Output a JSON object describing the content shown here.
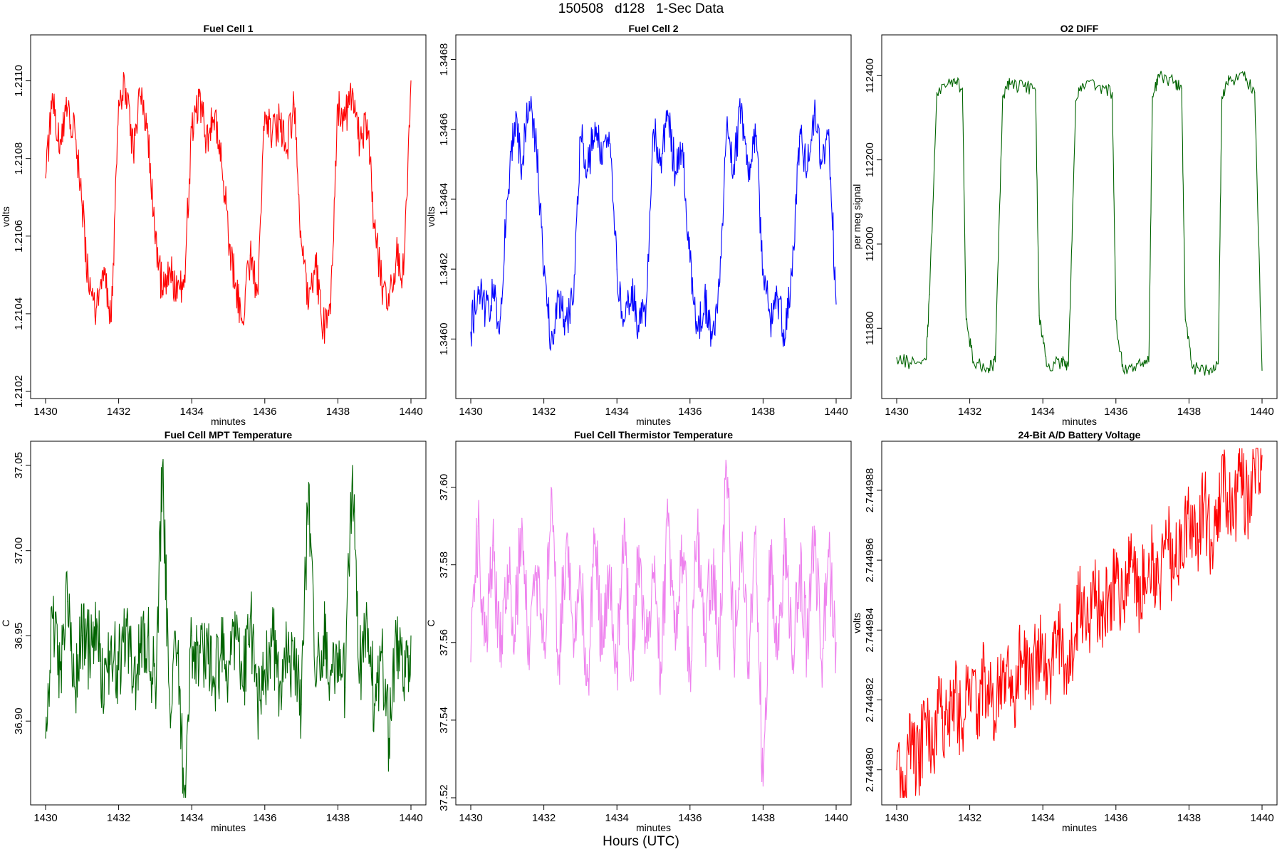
{
  "figure": {
    "title": "150508   d128   1-Sec Data",
    "xlabel": "Hours (UTC)"
  },
  "chart_data": [
    {
      "type": "line",
      "title": "Fuel Cell 1",
      "xlabel": "minutes",
      "ylabel": "volts",
      "color": "#ff0000",
      "xlim": [
        1430,
        1440
      ],
      "ylim": [
        1.2102,
        1.2111
      ],
      "xticks": [
        "1430",
        "1432",
        "1434",
        "1436",
        "1438",
        "1440"
      ],
      "yticks": [
        "1.2102",
        "1.2104",
        "1.2106",
        "1.2108",
        "1.2110"
      ],
      "x": [
        1430.0,
        1430.2,
        1430.4,
        1430.6,
        1430.8,
        1431.0,
        1431.2,
        1431.4,
        1431.6,
        1431.8,
        1432.0,
        1432.2,
        1432.4,
        1432.6,
        1432.8,
        1433.0,
        1433.2,
        1433.4,
        1433.6,
        1433.8,
        1434.0,
        1434.2,
        1434.4,
        1434.6,
        1434.8,
        1435.0,
        1435.2,
        1435.4,
        1435.6,
        1435.8,
        1436.0,
        1436.2,
        1436.4,
        1436.6,
        1436.8,
        1437.0,
        1437.2,
        1437.4,
        1437.6,
        1437.8,
        1438.0,
        1438.2,
        1438.4,
        1438.6,
        1438.8,
        1439.0,
        1439.2,
        1439.4,
        1439.6,
        1439.8,
        1440.0
      ],
      "y": [
        1.21075,
        1.21095,
        1.21085,
        1.21093,
        1.21088,
        1.21068,
        1.21045,
        1.21042,
        1.21052,
        1.21038,
        1.21095,
        1.21098,
        1.21082,
        1.21096,
        1.21087,
        1.21058,
        1.21046,
        1.21052,
        1.21044,
        1.2105,
        1.21088,
        1.21096,
        1.21085,
        1.2109,
        1.21084,
        1.2106,
        1.21048,
        1.21038,
        1.21055,
        1.21046,
        1.21092,
        1.21086,
        1.2109,
        1.21082,
        1.21094,
        1.21058,
        1.21042,
        1.21052,
        1.21036,
        1.2104,
        1.21094,
        1.2109,
        1.21098,
        1.21084,
        1.2109,
        1.21062,
        1.21048,
        1.21042,
        1.21055,
        1.2105,
        1.211
      ]
    },
    {
      "type": "line",
      "title": "Fuel Cell 2",
      "xlabel": "minutes",
      "ylabel": "volts",
      "color": "#0000ff",
      "xlim": [
        1430,
        1440
      ],
      "ylim": [
        1.34585,
        1.34685
      ],
      "xticks": [
        "1430",
        "1432",
        "1434",
        "1436",
        "1438",
        "1440"
      ],
      "yticks": [
        "1.3460",
        "1.3462",
        "1.3464",
        "1.3466",
        "1.3468"
      ],
      "x": [
        1430.0,
        1430.2,
        1430.4,
        1430.6,
        1430.8,
        1431.0,
        1431.2,
        1431.4,
        1431.6,
        1431.8,
        1432.0,
        1432.2,
        1432.4,
        1432.6,
        1432.8,
        1433.0,
        1433.2,
        1433.4,
        1433.6,
        1433.8,
        1434.0,
        1434.2,
        1434.4,
        1434.6,
        1434.8,
        1435.0,
        1435.2,
        1435.4,
        1435.6,
        1435.8,
        1436.0,
        1436.2,
        1436.4,
        1436.6,
        1436.8,
        1437.0,
        1437.2,
        1437.4,
        1437.6,
        1437.8,
        1438.0,
        1438.2,
        1438.4,
        1438.6,
        1438.8,
        1439.0,
        1439.2,
        1439.4,
        1439.6,
        1439.8,
        1440.0
      ],
      "y": [
        1.34602,
        1.34615,
        1.34608,
        1.34612,
        1.34605,
        1.3464,
        1.34662,
        1.3465,
        1.34668,
        1.34655,
        1.34618,
        1.346,
        1.34612,
        1.34605,
        1.3461,
        1.34658,
        1.34648,
        1.34662,
        1.3465,
        1.34656,
        1.3462,
        1.34605,
        1.34615,
        1.34602,
        1.3461,
        1.3466,
        1.34652,
        1.34664,
        1.34648,
        1.34656,
        1.34622,
        1.34603,
        1.34612,
        1.346,
        1.34615,
        1.3466,
        1.3465,
        1.34666,
        1.34645,
        1.34658,
        1.3462,
        1.34605,
        1.34612,
        1.346,
        1.34618,
        1.34658,
        1.34648,
        1.34664,
        1.3465,
        1.3466,
        1.3461
      ]
    },
    {
      "type": "line",
      "title": "O2 DIFF",
      "xlabel": "minutes",
      "ylabel": "per meg signal",
      "color": "#006400",
      "xlim": [
        1430,
        1440
      ],
      "ylim": [
        111650,
        112480
      ],
      "xticks": [
        "1430",
        "1432",
        "1434",
        "1436",
        "1438",
        "1440"
      ],
      "yticks": [
        "111800",
        "112000",
        "112200",
        "112400"
      ],
      "x": [
        1430.0,
        1430.4,
        1430.8,
        1430.9,
        1431.1,
        1431.5,
        1431.8,
        1431.9,
        1432.1,
        1432.5,
        1432.7,
        1432.9,
        1433.1,
        1433.5,
        1433.8,
        1433.9,
        1434.1,
        1434.5,
        1434.7,
        1434.9,
        1435.1,
        1435.5,
        1435.9,
        1436.0,
        1436.2,
        1436.6,
        1436.9,
        1437.0,
        1437.2,
        1437.6,
        1437.8,
        1437.9,
        1438.1,
        1438.5,
        1438.8,
        1438.9,
        1439.1,
        1439.5,
        1439.8,
        1440.0
      ],
      "y": [
        111730,
        111715,
        111725,
        111880,
        112360,
        112390,
        112370,
        111820,
        111720,
        111705,
        111720,
        112350,
        112380,
        112375,
        112365,
        111830,
        111710,
        111720,
        111710,
        112340,
        112380,
        112375,
        112360,
        111820,
        111700,
        111715,
        111720,
        112350,
        112400,
        112385,
        112370,
        111820,
        111705,
        111700,
        111715,
        112350,
        112390,
        112400,
        112360,
        111700
      ]
    },
    {
      "type": "line",
      "title": "Fuel Cell MPT Temperature",
      "xlabel": "minutes",
      "ylabel": "C",
      "color": "#006400",
      "xlim": [
        1430,
        1440
      ],
      "ylim": [
        36.855,
        37.06
      ],
      "xticks": [
        "1430",
        "1432",
        "1434",
        "1436",
        "1438",
        "1440"
      ],
      "yticks": [
        "36.90",
        "36.95",
        "37.00",
        "37.05"
      ],
      "x": [
        1430.0,
        1430.2,
        1430.4,
        1430.6,
        1430.8,
        1431.0,
        1431.2,
        1431.4,
        1431.6,
        1431.8,
        1432.0,
        1432.2,
        1432.4,
        1432.6,
        1432.8,
        1433.0,
        1433.2,
        1433.4,
        1433.6,
        1433.8,
        1434.0,
        1434.2,
        1434.4,
        1434.6,
        1434.8,
        1435.0,
        1435.2,
        1435.4,
        1435.6,
        1435.8,
        1436.0,
        1436.2,
        1436.4,
        1436.6,
        1436.8,
        1437.0,
        1437.2,
        1437.4,
        1437.6,
        1437.8,
        1438.0,
        1438.2,
        1438.4,
        1438.6,
        1438.8,
        1439.0,
        1439.2,
        1439.4,
        1439.6,
        1439.8,
        1440.0
      ],
      "y": [
        36.89,
        36.96,
        36.93,
        36.97,
        36.92,
        36.95,
        36.94,
        36.96,
        36.91,
        36.95,
        36.93,
        36.96,
        36.92,
        36.94,
        36.95,
        36.92,
        37.05,
        36.91,
        36.94,
        36.86,
        36.95,
        36.93,
        36.95,
        36.92,
        36.94,
        36.93,
        36.95,
        36.92,
        36.96,
        36.91,
        36.93,
        36.95,
        36.92,
        36.94,
        36.93,
        36.91,
        37.04,
        36.92,
        36.95,
        36.93,
        36.94,
        36.92,
        37.05,
        36.93,
        36.96,
        36.91,
        36.94,
        36.89,
        36.95,
        36.92,
        36.95
      ]
    },
    {
      "type": "line",
      "title": "Fuel Cell Thermistor Temperature",
      "xlabel": "minutes",
      "ylabel": "C",
      "color": "#ee82ee",
      "xlim": [
        1430,
        1440
      ],
      "ylim": [
        37.52,
        37.61
      ],
      "xticks": [
        "1430",
        "1432",
        "1434",
        "1436",
        "1438",
        "1440"
      ],
      "yticks": [
        "37.52",
        "37.54",
        "37.56",
        "37.58",
        "37.60"
      ],
      "x": [
        1430.0,
        1430.2,
        1430.4,
        1430.6,
        1430.8,
        1431.0,
        1431.2,
        1431.4,
        1431.6,
        1431.8,
        1432.0,
        1432.2,
        1432.4,
        1432.6,
        1432.8,
        1433.0,
        1433.2,
        1433.4,
        1433.6,
        1433.8,
        1434.0,
        1434.2,
        1434.4,
        1434.6,
        1434.8,
        1435.0,
        1435.2,
        1435.4,
        1435.6,
        1435.8,
        1436.0,
        1436.2,
        1436.4,
        1436.6,
        1436.8,
        1437.0,
        1437.2,
        1437.4,
        1437.6,
        1437.8,
        1438.0,
        1438.2,
        1438.4,
        1438.6,
        1438.8,
        1439.0,
        1439.2,
        1439.4,
        1439.6,
        1439.8,
        1440.0
      ],
      "y": [
        37.555,
        37.59,
        37.56,
        37.585,
        37.555,
        37.58,
        37.562,
        37.592,
        37.553,
        37.578,
        37.558,
        37.6,
        37.555,
        37.583,
        37.562,
        37.578,
        37.55,
        37.588,
        37.557,
        37.58,
        37.555,
        37.592,
        37.552,
        37.585,
        37.56,
        37.578,
        37.555,
        37.59,
        37.558,
        37.582,
        37.553,
        37.588,
        37.56,
        37.58,
        37.555,
        37.605,
        37.558,
        37.583,
        37.555,
        37.59,
        37.523,
        37.585,
        37.557,
        37.588,
        37.553,
        37.58,
        37.56,
        37.59,
        37.555,
        37.582,
        37.56
      ]
    },
    {
      "type": "line",
      "title": "24-Bit A/D Battery Voltage",
      "xlabel": "minutes",
      "ylabel": "volts",
      "color": "#ff0000",
      "xlim": [
        1430,
        1440
      ],
      "ylim": [
        2.7449792,
        2.7449892
      ],
      "xticks": [
        "1430",
        "1432",
        "1434",
        "1436",
        "1438",
        "1440"
      ],
      "yticks": [
        "2.744980",
        "2.744982",
        "2.744984",
        "2.744986",
        "2.744988"
      ],
      "x": [
        1430.0,
        1430.2,
        1430.4,
        1430.6,
        1430.8,
        1431.0,
        1431.2,
        1431.4,
        1431.6,
        1431.8,
        1432.0,
        1432.2,
        1432.4,
        1432.6,
        1432.8,
        1433.0,
        1433.2,
        1433.4,
        1433.6,
        1433.8,
        1434.0,
        1434.2,
        1434.4,
        1434.6,
        1434.8,
        1435.0,
        1435.2,
        1435.4,
        1435.6,
        1435.8,
        1436.0,
        1436.2,
        1436.4,
        1436.6,
        1436.8,
        1437.0,
        1437.2,
        1437.4,
        1437.6,
        1437.8,
        1438.0,
        1438.2,
        1438.4,
        1438.6,
        1438.8,
        1439.0,
        1439.2,
        1439.4,
        1439.6,
        1439.8,
        1440.0
      ],
      "y": [
        2.74498,
        2.7449794,
        2.7449808,
        2.7449802,
        2.7449815,
        2.7449806,
        2.7449818,
        2.744981,
        2.7449822,
        2.7449812,
        2.7449826,
        2.7449816,
        2.7449828,
        2.7449818,
        2.7449824,
        2.744983,
        2.7449821,
        2.7449834,
        2.7449825,
        2.7449832,
        2.7449836,
        2.7449826,
        2.744984,
        2.744983,
        2.7449836,
        2.7449848,
        2.744984,
        2.7449852,
        2.7449844,
        2.744985,
        2.7449854,
        2.7449846,
        2.7449858,
        2.7449848,
        2.7449855,
        2.744986,
        2.7449852,
        2.7449866,
        2.7449856,
        2.7449868,
        2.7449872,
        2.7449862,
        2.7449876,
        2.7449866,
        2.7449878,
        2.744988,
        2.744987,
        2.7449884,
        2.7449876,
        2.7449886,
        2.744989
      ]
    }
  ]
}
